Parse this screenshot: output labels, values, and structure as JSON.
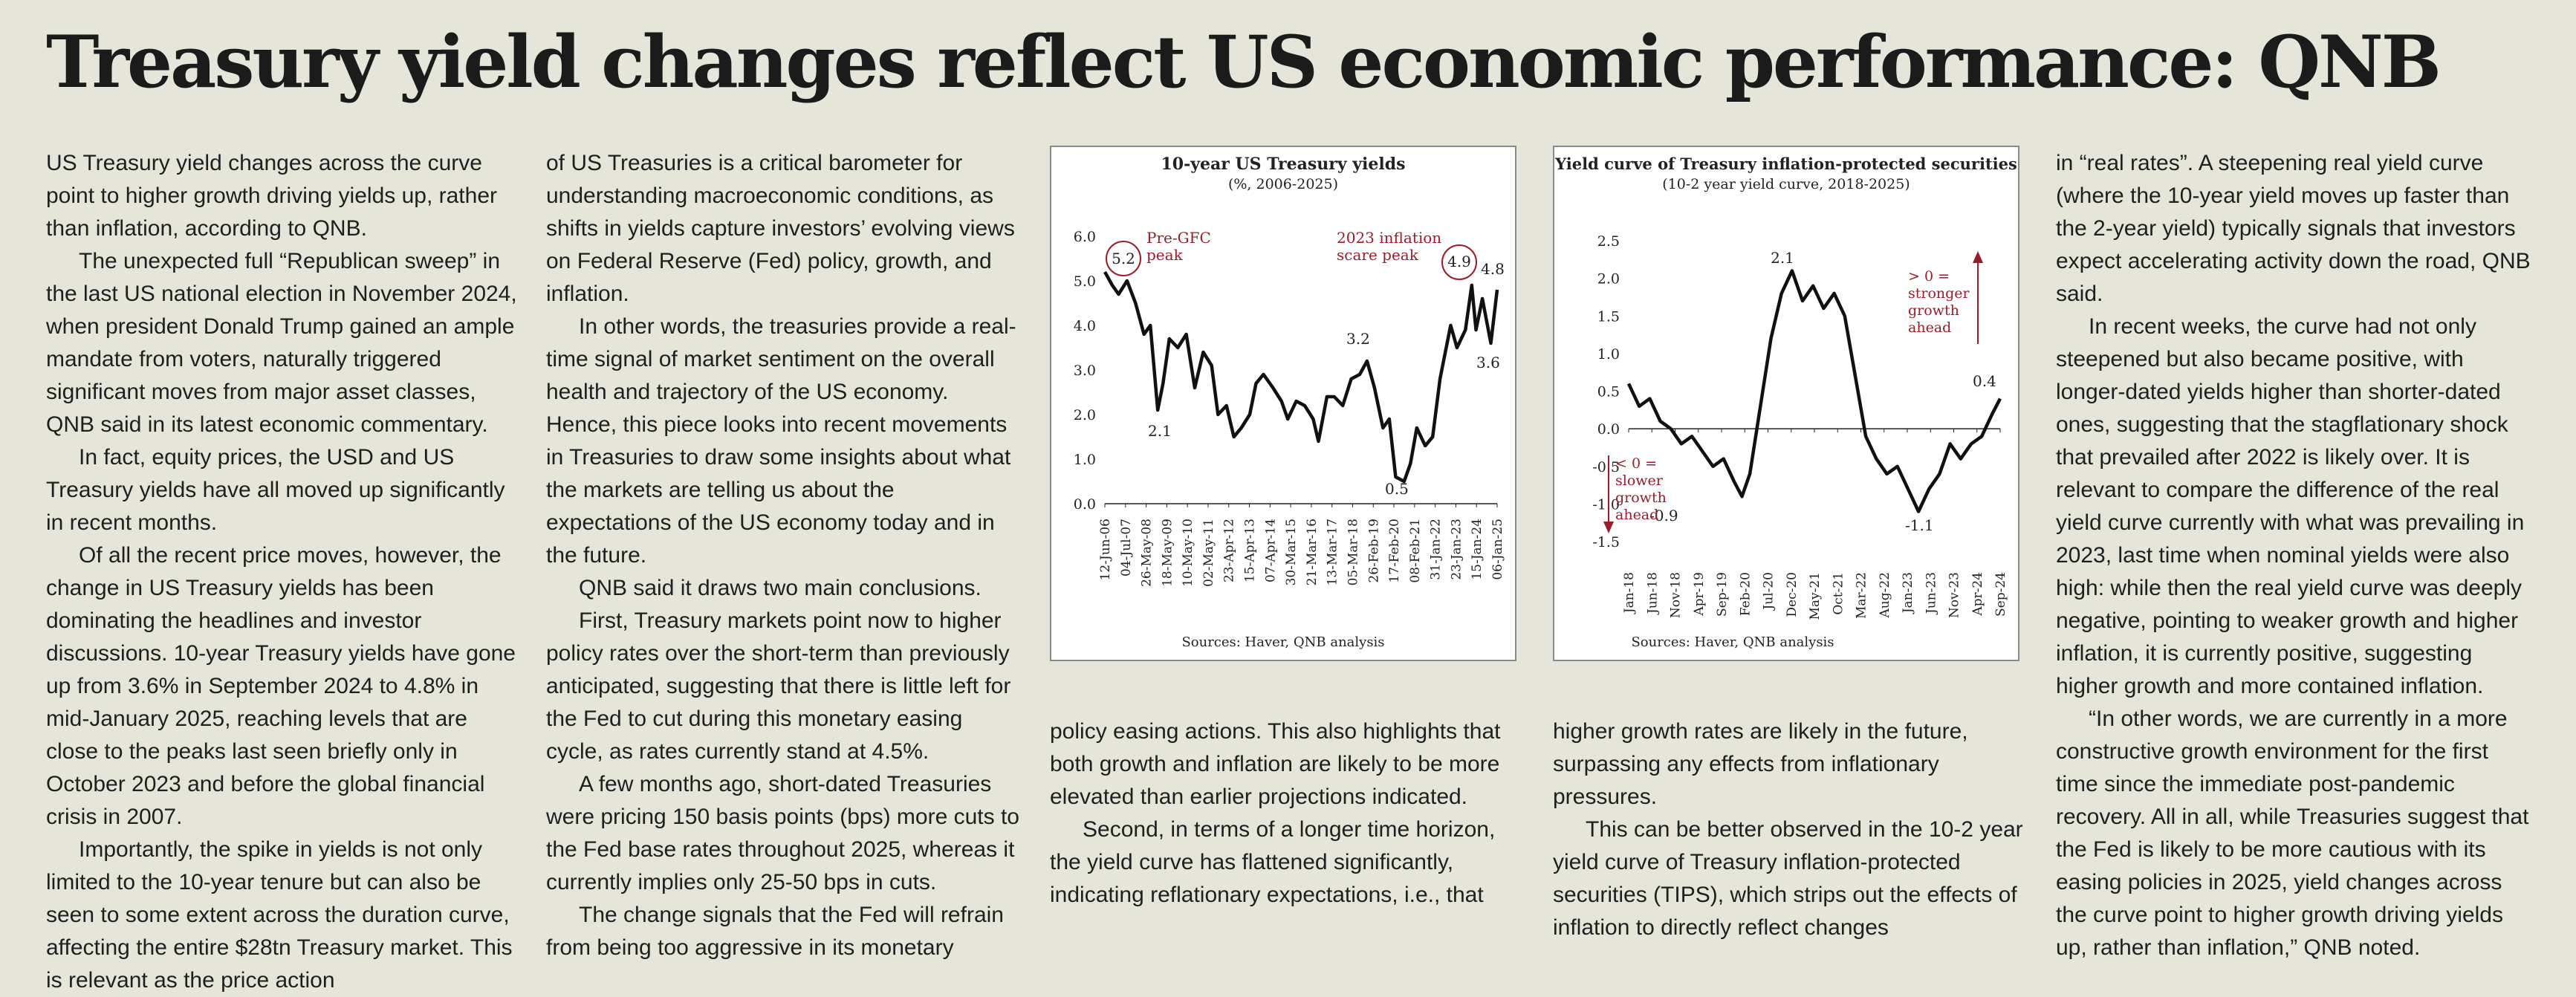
{
  "headline": "Treasury yield changes reflect US economic performance: QNB",
  "columns": {
    "col1": [
      "US Treasury yield changes across the curve point to higher growth driving yields up, rather than inflation, according to QNB.",
      "The unexpected full “Republican sweep” in the last US national election in November 2024, when president Donald Trump gained an ample mandate from voters, naturally triggered significant moves from major asset classes, QNB said in its latest economic commentary.",
      "In fact, equity prices, the USD and US Treasury yields have all moved up significantly in recent months.",
      "Of all the recent price moves, however, the change in US Treasury yields has been dominating the headlines and investor discussions. 10-year Treasury yields have gone up from 3.6% in September 2024 to 4.8% in mid-January 2025, reaching levels that are close to the peaks last seen briefly only in October 2023 and before the global financial crisis in 2007.",
      "Importantly, the spike in yields is not only limited to the 10-year tenure but can also be seen to some extent across the duration curve, affecting the entire $28tn Treasury market. This is relevant as the price action"
    ],
    "col2": [
      "of US Treasuries is a critical barometer for understanding macroeconomic conditions, as shifts in yields capture investors’ evolving views on Federal Reserve (Fed) policy, growth, and inflation.",
      "In other words, the treasuries provide a real-time signal of market sentiment on the overall health and trajectory of the US economy. Hence, this piece looks into recent movements in Treasuries to draw some insights about what the markets are telling us about the expectations of the US economy today and in the future.",
      "QNB said it draws two main conclusions.",
      "First, Treasury markets point now to higher policy rates over the short-term than previously anticipated, suggesting that there is little left for the Fed to cut during this monetary easing cycle, as rates currently stand at 4.5%.",
      "A few months ago, short-dated Treasuries were pricing 150 basis points (bps) more cuts to the Fed base rates throughout 2025, whereas it currently implies only 25-50 bps in cuts.",
      "The change signals that the Fed will refrain from being too aggressive in its monetary"
    ],
    "col3": [
      "policy easing actions. This also highlights that both growth and inflation are likely to be more elevated than earlier projections indicated.",
      "Second, in terms of a longer time horizon, the yield curve has flattened significantly, indicating reflationary expectations, i.e., that"
    ],
    "col4": [
      "higher growth rates are likely in the future, surpassing any effects from inflationary pressures.",
      "This can be better observed in the 10-2 year yield curve of Treasury inflation-protected securities (TIPS), which strips out the effects of inflation to directly reflect changes"
    ],
    "col5": [
      "in “real rates”. A steepening real yield curve (where the 10-year yield moves up faster than the 2-year yield) typically signals that investors expect accelerating activity down the road, QNB said.",
      "In recent weeks, the curve had not only steepened but also became positive, with longer-dated yields higher than shorter-dated ones, suggesting that the stagflationary shock that prevailed after 2022 is likely over. It is relevant to compare the difference of the real yield curve currently with what was prevailing in 2023, last time when nominal yields were also high: while then the real yield curve was deeply negative, pointing to weaker growth and higher inflation, it is currently positive, suggesting higher growth and more contained inflation.",
      "“In other words, we are currently in a more constructive growth environment for the first time since the immediate post-pandemic recovery. All in all, while Treasuries suggest that the Fed is likely to be more cautious with its easing policies in 2025, yield changes across the curve point to higher growth driving yields up, rather than inflation,” QNB noted."
    ]
  },
  "chart_data": [
    {
      "type": "line",
      "title": "10-year US Treasury yields",
      "subtitle": "(%, 2006-2025)",
      "source": "Sources: Haver, QNB analysis",
      "ylim": [
        0,
        6
      ],
      "yticks": [
        "0.0",
        "1.0",
        "2.0",
        "3.0",
        "4.0",
        "5.0",
        "6.0"
      ],
      "xticks": [
        "12-Jun-06",
        "04-Jul-07",
        "26-May-08",
        "18-May-09",
        "10-May-10",
        "02-May-11",
        "23-Apr-12",
        "15-Apr-13",
        "07-Apr-14",
        "30-Mar-15",
        "21-Mar-16",
        "13-Mar-17",
        "05-Mar-18",
        "26-Feb-19",
        "17-Feb-20",
        "08-Feb-21",
        "31-Jan-22",
        "23-Jan-23",
        "15-Jan-24",
        "06-Jan-25"
      ],
      "series": [
        {
          "x": [
            2006.45,
            2006.8,
            2007.1,
            2007.5,
            2007.9,
            2008.3,
            2008.6,
            2008.95,
            2009.2,
            2009.5,
            2009.9,
            2010.3,
            2010.7,
            2011.1,
            2011.5,
            2011.8,
            2012.2,
            2012.55,
            2012.9,
            2013.3,
            2013.6,
            2013.95,
            2014.4,
            2014.8,
            2015.1,
            2015.5,
            2015.9,
            2016.3,
            2016.55,
            2016.95,
            2017.3,
            2017.7,
            2018.1,
            2018.5,
            2018.85,
            2019.2,
            2019.6,
            2019.9,
            2020.2,
            2020.6,
            2020.9,
            2021.2,
            2021.6,
            2021.95,
            2022.3,
            2022.8,
            2023.1,
            2023.5,
            2023.8,
            2024.0,
            2024.3,
            2024.7,
            2025.0
          ],
          "values": [
            5.2,
            4.9,
            4.7,
            5.0,
            4.5,
            3.8,
            4.0,
            2.1,
            2.7,
            3.7,
            3.5,
            3.8,
            2.6,
            3.4,
            3.1,
            2.0,
            2.2,
            1.5,
            1.7,
            2.0,
            2.7,
            2.9,
            2.6,
            2.3,
            1.9,
            2.3,
            2.2,
            1.9,
            1.4,
            2.4,
            2.4,
            2.2,
            2.8,
            2.9,
            3.2,
            2.6,
            1.7,
            1.9,
            0.6,
            0.5,
            0.9,
            1.7,
            1.3,
            1.5,
            2.8,
            4.0,
            3.5,
            3.9,
            4.9,
            3.9,
            4.6,
            3.6,
            4.8
          ]
        }
      ],
      "annotations": [
        "5.2",
        "Pre-GFC",
        "peak",
        "2023 inflation",
        "scare peak",
        "4.9",
        "4.8",
        "3.6",
        "3.2",
        "2.1",
        "0.5"
      ]
    },
    {
      "type": "line",
      "title": "Yield curve of Treasury inflation-protected securities",
      "subtitle": "(10-2 year yield curve, 2018-2025)",
      "source": "Sources: Haver, QNB analysis",
      "ylim": [
        -1.5,
        2.5
      ],
      "yticks": [
        "2.5",
        "2.0",
        "1.5",
        "1.0",
        "0.5",
        "0.0",
        "-0.5",
        "-1.0",
        "-1.5"
      ],
      "xticks": [
        "Jan-18",
        "Jun-18",
        "Nov-18",
        "Apr-19",
        "Sep-19",
        "Feb-20",
        "Jul-20",
        "Dec-20",
        "May-21",
        "Oct-21",
        "Mar-22",
        "Aug-22",
        "Jan-23",
        "Jun-23",
        "Nov-23",
        "Apr-24",
        "Sep-24"
      ],
      "series": [
        {
          "x": [
            2018.0,
            2018.2,
            2018.4,
            2018.6,
            2018.8,
            2019.0,
            2019.2,
            2019.4,
            2019.6,
            2019.8,
            2020.0,
            2020.15,
            2020.3,
            2020.5,
            2020.7,
            2020.9,
            2021.1,
            2021.3,
            2021.5,
            2021.7,
            2021.9,
            2022.1,
            2022.3,
            2022.5,
            2022.7,
            2022.9,
            2023.1,
            2023.3,
            2023.5,
            2023.7,
            2023.9,
            2024.1,
            2024.3,
            2024.5,
            2024.7,
            2024.9,
            2025.05
          ],
          "values": [
            0.6,
            0.3,
            0.4,
            0.1,
            0.0,
            -0.2,
            -0.1,
            -0.3,
            -0.5,
            -0.4,
            -0.7,
            -0.9,
            -0.6,
            0.3,
            1.2,
            1.8,
            2.1,
            1.7,
            1.9,
            1.6,
            1.8,
            1.5,
            0.7,
            -0.1,
            -0.4,
            -0.6,
            -0.5,
            -0.8,
            -1.1,
            -0.8,
            -0.6,
            -0.2,
            -0.4,
            -0.2,
            -0.1,
            0.2,
            0.4
          ]
        }
      ],
      "annotations": [
        "2.1",
        "-0.9",
        "-1.1",
        "0.4",
        "> 0 =",
        "stronger",
        "growth",
        "ahead",
        "< 0 =",
        "slower",
        "growth",
        "ahead"
      ]
    }
  ]
}
